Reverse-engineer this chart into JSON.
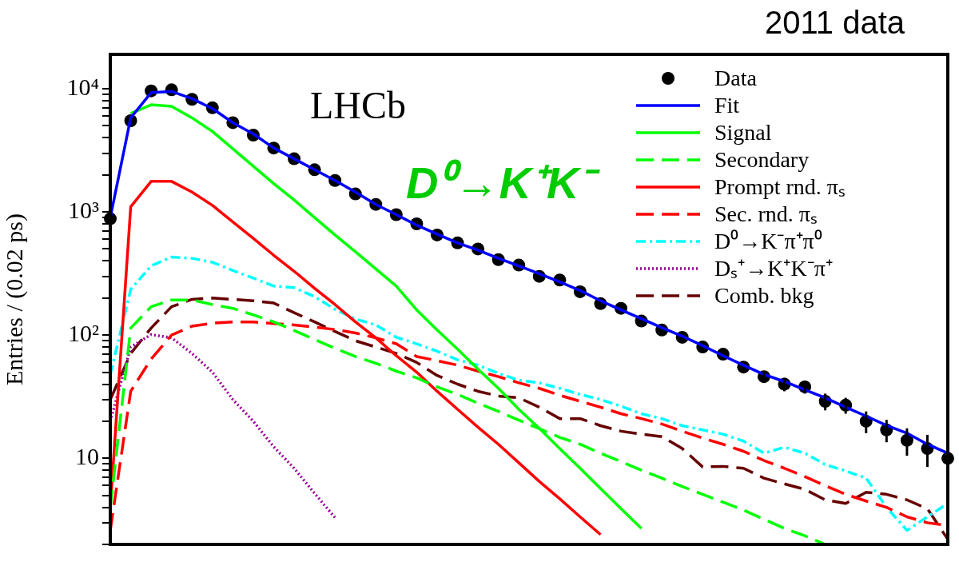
{
  "chart_data": {
    "type": "line",
    "title": "2011 data",
    "ylabel": "Entries / (0.02 ps)",
    "annotations": [
      "LHCb",
      "D⁰→K⁺K⁻"
    ],
    "categories": [
      null,
      null,
      null,
      null,
      null,
      null,
      null,
      null,
      null,
      null,
      null,
      null,
      null,
      null,
      null,
      null,
      null,
      null,
      null,
      null,
      null,
      null,
      null,
      null,
      null,
      null,
      null,
      null,
      null,
      null,
      null,
      null,
      null,
      null,
      null,
      null,
      null,
      null,
      null,
      null,
      null,
      null
    ],
    "log": true,
    "ylim": [
      2,
      19000
    ],
    "yticks": [
      {
        "value": 2,
        "label": null
      },
      {
        "value": 3,
        "label": null
      },
      {
        "value": 4,
        "label": null
      },
      {
        "value": 5,
        "label": null
      },
      {
        "value": 6,
        "label": null
      },
      {
        "value": 7,
        "label": null
      },
      {
        "value": 8,
        "label": null
      },
      {
        "value": 9,
        "label": null
      },
      10,
      {
        "value": 20,
        "label": null
      },
      {
        "value": 30,
        "label": null
      },
      {
        "value": 40,
        "label": null
      },
      {
        "value": 50,
        "label": null
      },
      {
        "value": 60,
        "label": null
      },
      {
        "value": 70,
        "label": null
      },
      {
        "value": 80,
        "label": null
      },
      {
        "value": 90,
        "label": null
      },
      {
        "value": 100,
        "label": "10²"
      },
      {
        "value": 200,
        "label": null
      },
      {
        "value": 300,
        "label": null
      },
      {
        "value": 400,
        "label": null
      },
      {
        "value": 500,
        "label": null
      },
      {
        "value": 600,
        "label": null
      },
      {
        "value": 700,
        "label": null
      },
      {
        "value": 800,
        "label": null
      },
      {
        "value": 900,
        "label": null
      },
      {
        "value": 1000,
        "label": "10³"
      },
      {
        "value": 2000,
        "label": null
      },
      {
        "value": 3000,
        "label": null
      },
      {
        "value": 4000,
        "label": null
      },
      {
        "value": 5000,
        "label": null
      },
      {
        "value": 6000,
        "label": null
      },
      {
        "value": 7000,
        "label": null
      },
      {
        "value": 8000,
        "label": null
      },
      {
        "value": 9000,
        "label": null
      },
      {
        "value": 10000,
        "label": "10⁴"
      }
    ],
    "grid": false,
    "legend": "top right",
    "tick_labels": "y",
    "series": [
      {
        "name": "Data",
        "type": "scatter",
        "marker": "circle",
        "color": "#000000",
        "values": [
          880,
          5500,
          9600,
          9800,
          8200,
          7000,
          5300,
          4200,
          3300,
          2700,
          2200,
          1800,
          1400,
          1150,
          950,
          800,
          650,
          560,
          500,
          410,
          370,
          300,
          280,
          225,
          180,
          165,
          130,
          110,
          96,
          80,
          70,
          55,
          46,
          40,
          38,
          29,
          27,
          20,
          17,
          14,
          12,
          10
        ],
        "errors": [
          null,
          null,
          null,
          null,
          null,
          null,
          null,
          null,
          null,
          null,
          null,
          null,
          null,
          null,
          null,
          null,
          null,
          null,
          null,
          null,
          null,
          null,
          null,
          null,
          null,
          null,
          null,
          null,
          null,
          null,
          null,
          null,
          5,
          5,
          4.5,
          4.5,
          4,
          4,
          3.5,
          3.5,
          3.5,
          3
        ]
      },
      {
        "name": "Fit",
        "color": "#0000ff",
        "line_style": "solid",
        "values": [
          900,
          5800,
          9300,
          9500,
          8300,
          6900,
          5300,
          4300,
          3300,
          2700,
          2200,
          1800,
          1450,
          1150,
          950,
          780,
          660,
          560,
          490,
          420,
          365,
          315,
          270,
          230,
          190,
          160,
          136,
          115,
          98,
          82,
          68,
          57,
          48,
          42,
          36,
          31,
          26,
          22,
          18.5,
          16,
          13,
          11
        ]
      },
      {
        "name": "Signal",
        "color": "#00ff00",
        "line_style": "solid",
        "values": [
          null,
          6300,
          7400,
          7200,
          5800,
          4500,
          3250,
          2350,
          1700,
          1250,
          900,
          650,
          475,
          345,
          250,
          160,
          110,
          77,
          53,
          37,
          25,
          17.5,
          12,
          8.3,
          5.7,
          3.9,
          2.7,
          null,
          null,
          null,
          null,
          null,
          null,
          null,
          null,
          null,
          null,
          null,
          null,
          null,
          null,
          null
        ]
      },
      {
        "name": "Secondary",
        "color": "#00ff00",
        "line_style": "dashed",
        "values": [
          4,
          114,
          170,
          193,
          193,
          177,
          165,
          146,
          128,
          109,
          92,
          78,
          67,
          59,
          51,
          45,
          38,
          33,
          28,
          24,
          20.4,
          17.4,
          14.8,
          13,
          11,
          9.4,
          8,
          6.9,
          5.9,
          5.1,
          4.4,
          3.8,
          3.2,
          2.7,
          2.35,
          2,
          null,
          null,
          null,
          null,
          null,
          null
        ]
      },
      {
        "name": "Prompt rnd. πₛ",
        "color": "#ff0000",
        "line_style": "solid",
        "values": [
          4,
          1100,
          1770,
          1770,
          1450,
          1130,
          830,
          610,
          445,
          330,
          240,
          177,
          128,
          95,
          68,
          50,
          35,
          25,
          17.9,
          13,
          9.2,
          6.5,
          4.7,
          3.35,
          2.4,
          null,
          null,
          null,
          null,
          null,
          null,
          null,
          null,
          null,
          null,
          null,
          null,
          null,
          null,
          null,
          null,
          null
        ]
      },
      {
        "name": "Sec. rnd. πₛ",
        "color": "#ff0000",
        "line_style": "dashed",
        "values": [
          2.6,
          35,
          64,
          100,
          118,
          125,
          128,
          128,
          124,
          121,
          116,
          111,
          104,
          95,
          85,
          67,
          62,
          57,
          51,
          46,
          41,
          37,
          32.5,
          29,
          26,
          23,
          21,
          19,
          16.6,
          14.6,
          13,
          11.4,
          9.6,
          8.3,
          7.1,
          6,
          5.1,
          4.5,
          4,
          3.35,
          3,
          2.85
        ]
      },
      {
        "name": "D⁰→K⁻π⁺π⁰",
        "color": "#00ffff",
        "line_style": "dashdot",
        "values": [
          48,
          235,
          365,
          430,
          420,
          390,
          335,
          290,
          250,
          243,
          205,
          162,
          135,
          121,
          96,
          85,
          74,
          63,
          57,
          49,
          43,
          41,
          37,
          33,
          30,
          26.5,
          23,
          21,
          18.4,
          17,
          15.7,
          13.8,
          11,
          12.3,
          11,
          8.9,
          7.9,
          6.9,
          4,
          2.6,
          3.35,
          4.3
        ]
      },
      {
        "name": "Dₛ⁺→K⁺K⁻π⁺",
        "color": "#990099",
        "line_style": "dotted",
        "values": [
          20,
          80,
          101,
          95,
          71,
          50,
          30,
          20,
          12.4,
          8.3,
          5.2,
          3.3,
          null,
          null,
          null,
          null,
          null,
          null,
          null,
          null,
          null,
          null,
          null,
          null,
          null,
          null,
          null,
          null,
          null,
          null,
          null,
          null,
          null,
          null,
          null,
          null,
          null,
          null,
          null,
          null,
          null,
          null
        ]
      },
      {
        "name": "Comb. bkg",
        "color": "#660000",
        "line_style": "dashed",
        "values": [
          30,
          71,
          114,
          170,
          195,
          200,
          195,
          190,
          182,
          152,
          128,
          107,
          90,
          80,
          71,
          60,
          47,
          40,
          35,
          32,
          31,
          26,
          21,
          21,
          18.4,
          16.6,
          15.7,
          15,
          12,
          8.5,
          8.6,
          8.3,
          6.9,
          6.2,
          5.6,
          4.6,
          4.3,
          5.3,
          5.1,
          4.6,
          3.9,
          2.2
        ]
      }
    ]
  }
}
